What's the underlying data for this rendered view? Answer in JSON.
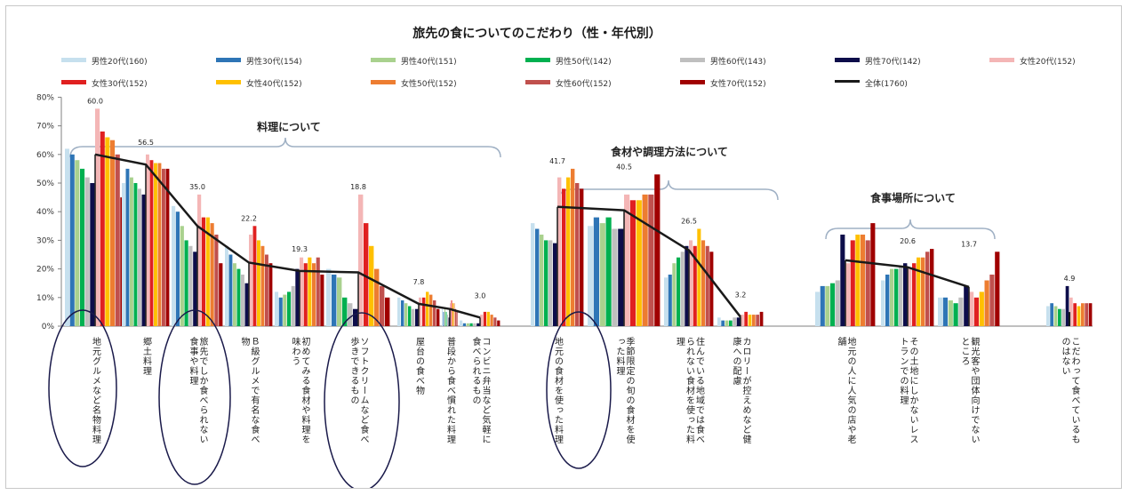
{
  "chart_data": {
    "type": "bar",
    "title": "旅先の食についてのこだわり（性・年代別）",
    "y_ticks": [
      "0%",
      "10%",
      "20%",
      "30%",
      "40%",
      "50%",
      "60%",
      "70%",
      "80%"
    ],
    "ylim": [
      0,
      80
    ],
    "grid": false,
    "legend_position": "top",
    "groups": [
      {
        "label": "料理について"
      },
      {
        "label": "食材や調理方法について"
      },
      {
        "label": "食事場所について"
      }
    ],
    "categories": [
      "地元グルメなど名物料理",
      "郷土料理",
      "旅先でしか食べられない食事や料理",
      "Ｂ級グルメで有名な食べ物",
      "初めてみる食材や料理を味わう",
      "ソフトクリームなど食べ歩きできるもの",
      "屋台の食べ物",
      "普段から食べ慣れた料理",
      "コンビニ弁当など気軽に食べられるもの",
      "地元の食材を使った料理",
      "季節限定の旬の食材を使った料理",
      "住んでいる地域では食べられない食材を使った料理",
      "カロリーが控えめなど健康への配慮",
      "地元の人に人気の店や老舗",
      "その土地にしかないレストランでの料理",
      "観光客や団体向けでないところ",
      "こだわって食べているものはない"
    ],
    "series": [
      {
        "name": "男性20代(160)",
        "color": "#c6e0ee",
        "values": [
          62,
          50,
          42,
          28,
          12,
          20,
          10,
          6,
          2,
          36,
          35,
          17,
          3,
          12,
          16,
          10,
          7
        ]
      },
      {
        "name": "男性30代(154)",
        "color": "#2e75b6",
        "values": [
          60,
          55,
          40,
          25,
          10,
          18,
          9,
          5,
          1,
          34,
          38,
          18,
          2,
          14,
          18,
          10,
          8
        ]
      },
      {
        "name": "男性40代(151)",
        "color": "#a9d18e",
        "values": [
          58,
          52,
          35,
          22,
          11,
          17,
          8,
          6,
          1,
          32,
          36,
          22,
          2,
          14,
          20,
          9,
          7
        ]
      },
      {
        "name": "男性50代(142)",
        "color": "#00b050",
        "values": [
          55,
          50,
          30,
          20,
          12,
          10,
          7,
          5,
          1,
          30,
          38,
          24,
          2,
          15,
          20,
          8,
          6
        ]
      },
      {
        "name": "男性60代(143)",
        "color": "#bfbfbf",
        "values": [
          52,
          48,
          28,
          18,
          14,
          8,
          6,
          4,
          1,
          30,
          34,
          26,
          3,
          16,
          21,
          10,
          6
        ]
      },
      {
        "name": "男性70代(142)",
        "color": "#0d0d4a",
        "values": [
          50,
          46,
          26,
          15,
          20,
          6,
          6,
          3,
          1,
          29,
          34,
          28,
          3,
          32,
          22,
          14,
          14
        ]
      },
      {
        "name": "女性20代(152)",
        "color": "#f4b6b6",
        "values": [
          76,
          60,
          46,
          32,
          24,
          46,
          10,
          8,
          4,
          52,
          46,
          30,
          4,
          22,
          20,
          12,
          10
        ]
      },
      {
        "name": "女性30代(152)",
        "color": "#e02020",
        "values": [
          68,
          58,
          38,
          35,
          22,
          36,
          10,
          9,
          5,
          48,
          44,
          28,
          5,
          30,
          22,
          10,
          8
        ]
      },
      {
        "name": "女性40代(152)",
        "color": "#ffc000",
        "values": [
          66,
          57,
          38,
          30,
          24,
          28,
          12,
          8,
          5,
          52,
          44,
          34,
          4,
          32,
          24,
          12,
          7
        ]
      },
      {
        "name": "女性50代(152)",
        "color": "#ed7d31",
        "values": [
          65,
          57,
          36,
          28,
          22,
          20,
          11,
          8,
          4,
          55,
          46,
          30,
          4,
          32,
          24,
          16,
          8
        ]
      },
      {
        "name": "女性60代(152)",
        "color": "#c0504d",
        "values": [
          60,
          55,
          32,
          25,
          24,
          14,
          9,
          6,
          3,
          50,
          46,
          28,
          4,
          30,
          26,
          18,
          8
        ]
      },
      {
        "name": "女性70代(152)",
        "color": "#a00000",
        "values": [
          45,
          55,
          22,
          22,
          18,
          10,
          6,
          5,
          2,
          48,
          53,
          26,
          5,
          36,
          27,
          26,
          8
        ]
      }
    ],
    "overall": {
      "name": "全体(1760)",
      "color": "#1a1a1a",
      "values": [
        60.0,
        56.5,
        35.0,
        22.2,
        19.3,
        18.8,
        7.8,
        6.0,
        3.0,
        41.7,
        40.5,
        26.5,
        3.2,
        23.0,
        20.6,
        13.7,
        4.9
      ]
    },
    "value_labels": [
      "60.0",
      "56.5",
      "35.0",
      "22.2",
      "19.3",
      "18.8",
      "7.8",
      "",
      "3.0",
      "41.7",
      "40.5",
      "26.5",
      "3.2",
      "",
      "20.6",
      "13.7",
      "4.9"
    ]
  }
}
